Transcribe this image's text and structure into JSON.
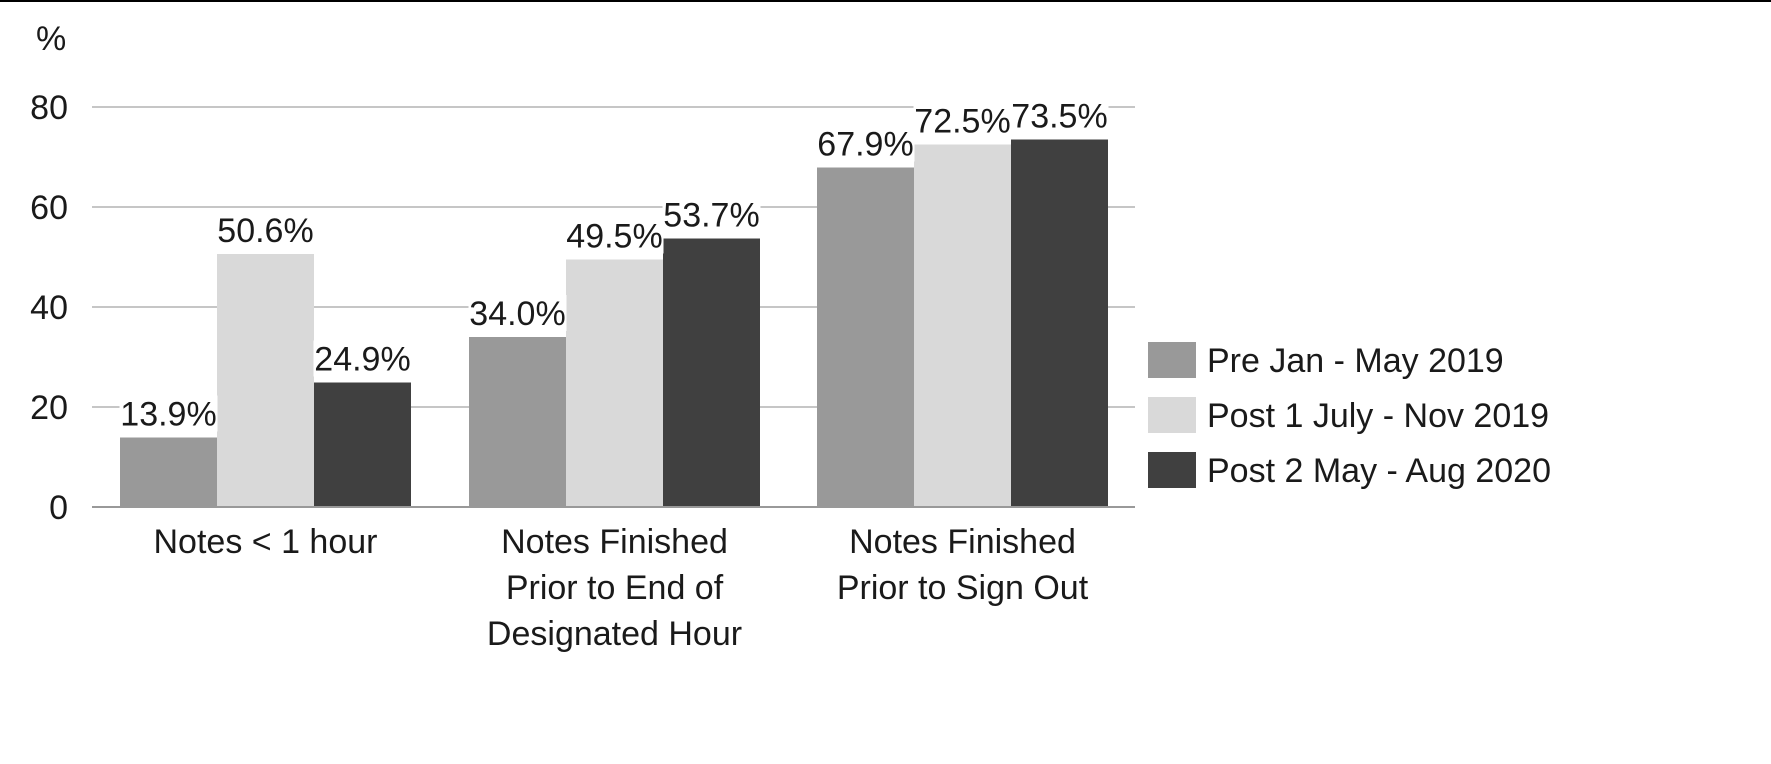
{
  "chart_data": {
    "type": "bar",
    "ylabel": "%",
    "ylim": [
      0,
      80
    ],
    "yticks": [
      "0",
      "20",
      "40",
      "60",
      "80"
    ],
    "grid": true,
    "legend_position": "right",
    "categories": [
      [
        "Notes < 1 hour"
      ],
      [
        "Notes Finished",
        "Prior to End of",
        "Designated Hour"
      ],
      [
        "Notes Finished",
        "Prior to Sign Out"
      ]
    ],
    "series": [
      {
        "name": "Pre Jan - May 2019",
        "color": "#999999",
        "values": [
          13.9,
          34.0,
          67.9
        ],
        "labels": [
          "13.9%",
          "34.0%",
          "67.9%"
        ]
      },
      {
        "name": "Post 1 July - Nov 2019",
        "color": "#d9d9d9",
        "values": [
          50.6,
          49.5,
          72.5
        ],
        "labels": [
          "50.6%",
          "49.5%",
          "72.5%"
        ]
      },
      {
        "name": "Post 2 May - Aug 2020",
        "color": "#404040",
        "values": [
          24.9,
          53.7,
          73.5
        ],
        "labels": [
          "24.9%",
          "53.7%",
          "73.5%"
        ]
      }
    ]
  }
}
